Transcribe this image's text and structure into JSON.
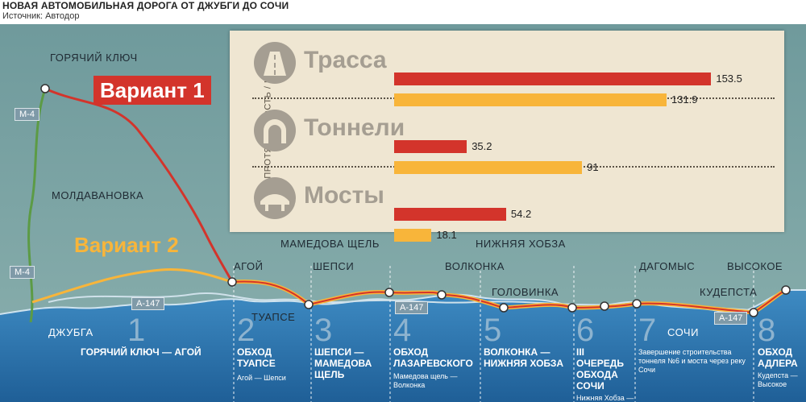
{
  "header": {
    "title": "НОВАЯ АВТОМОБИЛЬНАЯ ДОРОГА ОТ ДЖУБГИ ДО СОЧИ",
    "source": "Источник: Автодор"
  },
  "colors": {
    "variant1": "#d3342b",
    "variant2": "#f8b53a",
    "sea": "#2d78b4",
    "land": "#6f9a9c"
  },
  "variants": {
    "v1": "Вариант 1",
    "v2": "Вариант 2"
  },
  "roads": {
    "m4a": "М-4",
    "m4b": "М-4",
    "a147a": "А-147",
    "a147b": "А-147",
    "a147c": "А-147"
  },
  "places": {
    "goryachy": "ГОРЯЧИЙ КЛЮЧ",
    "moldavanovka": "МОЛДАВАНОВКА",
    "dzhubga": "ДЖУБГА",
    "agoy": "АГОЙ",
    "tuapse": "ТУАПСЕ",
    "mamedova": "МАМЕДОВА ЩЕЛЬ",
    "shepsi": "ШЕПСИ",
    "volkonka": "ВОЛКОНКА",
    "nizhnyaya": "НИЖНЯЯ ХОБЗА",
    "golovinka": "ГОЛОВИНКА",
    "dagomys": "ДАГОМЫС",
    "sochi": "СОЧИ",
    "kudepsta": "КУДЕПСТА",
    "vysokoe": "ВЫСОКОЕ"
  },
  "segments": [
    {
      "num": "1",
      "name": "ГОРЯЧИЙ КЛЮЧ — АГОЙ",
      "sub": ""
    },
    {
      "num": "2",
      "name": "ОБХОД ТУАПСЕ",
      "sub": "Агой — Шепси"
    },
    {
      "num": "3",
      "name": "ШЕПСИ — МАМЕДОВА ЩЕЛЬ",
      "sub": ""
    },
    {
      "num": "4",
      "name": "ОБХОД ЛАЗАРЕВСКОГО",
      "sub": "Мамедова щель — Волконка"
    },
    {
      "num": "5",
      "name": "ВОЛКОНКА — НИЖНЯЯ ХОБЗА",
      "sub": ""
    },
    {
      "num": "6",
      "name": "III ОЧЕРЕДЬ ОБХОДА СОЧИ",
      "sub": "Нижняя Хобза — Мамайка"
    },
    {
      "num": "7",
      "name": "",
      "sub": "Завершение строительства тоннеля №6 и моста через реку Сочи"
    },
    {
      "num": "8",
      "name": "ОБХОД АДЛЕРА",
      "sub": "Кудепста — Высокое"
    }
  ],
  "chart_data": {
    "type": "bar",
    "ylabel": "ПРОТЯЖЕННОСТЬ / КМ",
    "categories": [
      "Трасса",
      "Тоннели",
      "Мосты"
    ],
    "series": [
      {
        "color": "#d3342b",
        "values": [
          153.5,
          35.2,
          54.2
        ]
      },
      {
        "color": "#f8b53a",
        "values": [
          131.9,
          91,
          18.1
        ]
      }
    ],
    "xlim": [
      0,
      160
    ]
  }
}
